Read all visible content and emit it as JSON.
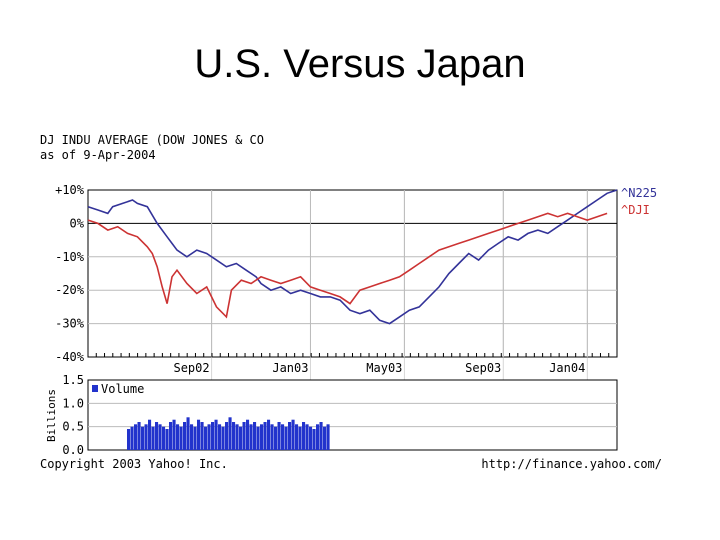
{
  "slide": {
    "title": "U.S. Versus Japan"
  },
  "chart_data": {
    "type": "line",
    "header": [
      "DJ INDU AVERAGE (DOW JONES & CO",
      "as of  9-Apr-2004"
    ],
    "ylabel_ticks": [
      "+10%",
      "0%",
      "-10%",
      "-20%",
      "-30%",
      "-40%"
    ],
    "ylim": [
      -40,
      10
    ],
    "x_ticks": [
      "Sep02",
      "Jan03",
      "May03",
      "Sep03",
      "Jan04"
    ],
    "grid": true,
    "legend_placement": "right",
    "colors": {
      "dji": "#cc3333",
      "n225": "#333399",
      "volume": "#2233cc",
      "frame": "#000000",
      "grid": "#bbbbbb"
    },
    "series": [
      {
        "name": "^N225",
        "color": "#333399",
        "points": [
          [
            0,
            5
          ],
          [
            0.02,
            4
          ],
          [
            0.04,
            3
          ],
          [
            0.05,
            5
          ],
          [
            0.07,
            6
          ],
          [
            0.09,
            7
          ],
          [
            0.1,
            6
          ],
          [
            0.12,
            5
          ],
          [
            0.14,
            0
          ],
          [
            0.16,
            -4
          ],
          [
            0.17,
            -6
          ],
          [
            0.18,
            -8
          ],
          [
            0.2,
            -10
          ],
          [
            0.22,
            -8
          ],
          [
            0.24,
            -9
          ],
          [
            0.26,
            -11
          ],
          [
            0.28,
            -13
          ],
          [
            0.3,
            -12
          ],
          [
            0.32,
            -14
          ],
          [
            0.34,
            -16
          ],
          [
            0.35,
            -18
          ],
          [
            0.37,
            -20
          ],
          [
            0.39,
            -19
          ],
          [
            0.41,
            -21
          ],
          [
            0.43,
            -20
          ],
          [
            0.45,
            -21
          ],
          [
            0.47,
            -22
          ],
          [
            0.49,
            -22
          ],
          [
            0.51,
            -23
          ],
          [
            0.53,
            -26
          ],
          [
            0.55,
            -27
          ],
          [
            0.57,
            -26
          ],
          [
            0.59,
            -29
          ],
          [
            0.61,
            -30
          ],
          [
            0.63,
            -28
          ],
          [
            0.65,
            -26
          ],
          [
            0.67,
            -25
          ],
          [
            0.69,
            -22
          ],
          [
            0.71,
            -19
          ],
          [
            0.73,
            -15
          ],
          [
            0.75,
            -12
          ],
          [
            0.77,
            -9
          ],
          [
            0.79,
            -11
          ],
          [
            0.81,
            -8
          ],
          [
            0.83,
            -6
          ],
          [
            0.85,
            -4
          ],
          [
            0.87,
            -5
          ],
          [
            0.89,
            -3
          ],
          [
            0.91,
            -2
          ],
          [
            0.93,
            -3
          ],
          [
            0.95,
            -1
          ],
          [
            0.97,
            1
          ],
          [
            0.99,
            3
          ],
          [
            1.01,
            5
          ],
          [
            1.03,
            7
          ],
          [
            1.05,
            9
          ],
          [
            1.07,
            10
          ]
        ]
      },
      {
        "name": "^DJI",
        "color": "#cc3333",
        "points": [
          [
            0,
            1
          ],
          [
            0.02,
            0
          ],
          [
            0.04,
            -2
          ],
          [
            0.06,
            -1
          ],
          [
            0.08,
            -3
          ],
          [
            0.1,
            -4
          ],
          [
            0.12,
            -7
          ],
          [
            0.13,
            -9
          ],
          [
            0.14,
            -13
          ],
          [
            0.15,
            -19
          ],
          [
            0.16,
            -24
          ],
          [
            0.17,
            -16
          ],
          [
            0.18,
            -14
          ],
          [
            0.2,
            -18
          ],
          [
            0.22,
            -21
          ],
          [
            0.24,
            -19
          ],
          [
            0.26,
            -25
          ],
          [
            0.28,
            -28
          ],
          [
            0.29,
            -20
          ],
          [
            0.31,
            -17
          ],
          [
            0.33,
            -18
          ],
          [
            0.35,
            -16
          ],
          [
            0.37,
            -17
          ],
          [
            0.39,
            -18
          ],
          [
            0.41,
            -17
          ],
          [
            0.43,
            -16
          ],
          [
            0.45,
            -19
          ],
          [
            0.47,
            -20
          ],
          [
            0.49,
            -21
          ],
          [
            0.51,
            -22
          ],
          [
            0.53,
            -24
          ],
          [
            0.55,
            -20
          ],
          [
            0.57,
            -19
          ],
          [
            0.59,
            -18
          ],
          [
            0.61,
            -17
          ],
          [
            0.63,
            -16
          ],
          [
            0.65,
            -14
          ],
          [
            0.67,
            -12
          ],
          [
            0.69,
            -10
          ],
          [
            0.71,
            -8
          ],
          [
            0.73,
            -7
          ],
          [
            0.75,
            -6
          ],
          [
            0.77,
            -5
          ],
          [
            0.79,
            -4
          ],
          [
            0.81,
            -3
          ],
          [
            0.83,
            -2
          ],
          [
            0.85,
            -1
          ],
          [
            0.87,
            0
          ],
          [
            0.89,
            1
          ],
          [
            0.91,
            2
          ],
          [
            0.93,
            3
          ],
          [
            0.95,
            2
          ],
          [
            0.97,
            3
          ],
          [
            0.99,
            2
          ],
          [
            1.01,
            1
          ],
          [
            1.03,
            2
          ],
          [
            1.05,
            3
          ]
        ]
      }
    ],
    "volume": {
      "label": "Volume",
      "ylabel": "Billions",
      "ticks": [
        "1.5",
        "1.0",
        "0.5",
        "0.0"
      ],
      "ylim": [
        0,
        1.5
      ],
      "bars": [
        0.45,
        0.5,
        0.55,
        0.6,
        0.5,
        0.55,
        0.65,
        0.5,
        0.6,
        0.55,
        0.5,
        0.45,
        0.6,
        0.65,
        0.55,
        0.5,
        0.6,
        0.7,
        0.55,
        0.5,
        0.65,
        0.6,
        0.5,
        0.55,
        0.6,
        0.65,
        0.55,
        0.5,
        0.6,
        0.7,
        0.6,
        0.55,
        0.5,
        0.6,
        0.65,
        0.55,
        0.6,
        0.5,
        0.55,
        0.6,
        0.65,
        0.55,
        0.5,
        0.6,
        0.55,
        0.5,
        0.6,
        0.65,
        0.55,
        0.5,
        0.6,
        0.55,
        0.5,
        0.45,
        0.55,
        0.6,
        0.5,
        0.55
      ]
    },
    "footer_left": "Copyright 2003 Yahoo! Inc.",
    "footer_right": "http://finance.yahoo.com/"
  }
}
